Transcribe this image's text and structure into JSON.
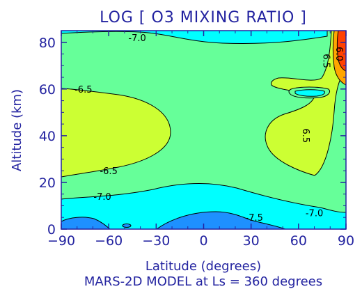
{
  "chart_data": {
    "type": "contour",
    "title": "LOG [ O3 MIXING RATIO ]",
    "xlabel": "Latitude (degrees)",
    "ylabel": "Altitude (km)",
    "caption": "MARS-2D MODEL at Ls =  360 degrees",
    "xlim": [
      -90,
      90
    ],
    "ylim": [
      0,
      85
    ],
    "xticks": [
      "-90",
      "-60",
      "-30",
      "0",
      "30",
      "60",
      "90"
    ],
    "yticks": [
      "0",
      "20",
      "40",
      "60",
      "80"
    ],
    "levels": [
      -7.5,
      -7.0,
      -6.5,
      -6.0
    ],
    "fill_colors": {
      "below_-7.5": "#1e90ff",
      "-7.5_to_-7.0": "#00ffff",
      "-7.0_to_-6.5": "#66ff99",
      "-6.5_to_-6.0": "#ccff33",
      "-6.0_to_-5.5": "#ffa500",
      "above_-5.5": "#ff4000"
    },
    "contour_labels": [
      {
        "text": "-7.0",
        "lat": -42,
        "alt": 82
      },
      {
        "text": "-6.5",
        "lat": -76,
        "alt": 60
      },
      {
        "text": "-6.5",
        "lat": -60,
        "alt": 25
      },
      {
        "text": "-7.0",
        "lat": -64,
        "alt": 14
      },
      {
        "text": "-7.5",
        "lat": 32,
        "alt": 5
      },
      {
        "text": "-7.0",
        "lat": 70,
        "alt": 7
      },
      {
        "text": "6.5",
        "lat": 78,
        "alt": 72
      },
      {
        "text": "6.0",
        "lat": 86,
        "alt": 75
      },
      {
        "text": "6.5",
        "lat": 65,
        "alt": 40
      }
    ]
  }
}
